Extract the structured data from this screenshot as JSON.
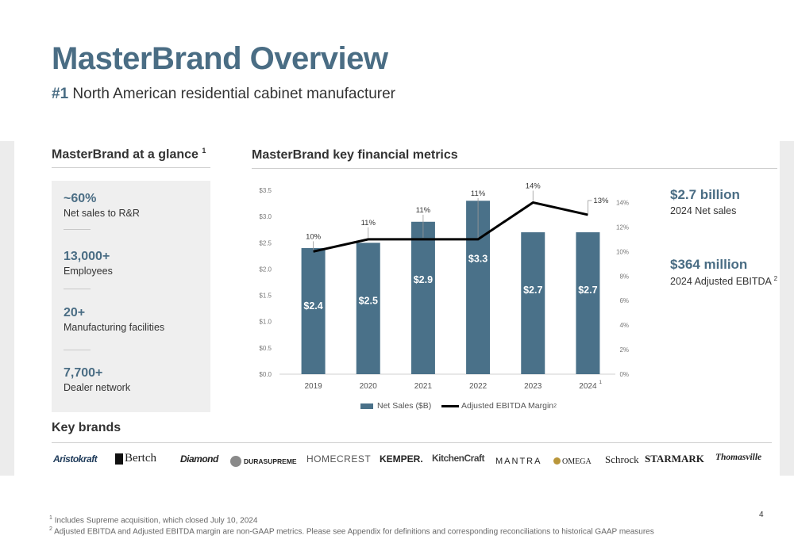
{
  "title": "MasterBrand Overview",
  "subtitle": {
    "hash": "#1",
    "text": "North American residential cabinet manufacturer"
  },
  "glance": {
    "heading": "MasterBrand at a glance",
    "heading_sup": "1",
    "stats": [
      {
        "value": "~60%",
        "label": "Net sales to R&R"
      },
      {
        "value": "13,000+",
        "label": "Employees"
      },
      {
        "value": "20+",
        "label": "Manufacturing facilities"
      },
      {
        "value": "7,700+",
        "label": "Dealer network"
      }
    ]
  },
  "metrics_heading": "MasterBrand key financial metrics",
  "kpis": [
    {
      "value": "$2.7 billion",
      "label": "2024 Net sales",
      "sup": ""
    },
    {
      "value": "$364 million",
      "label": "2024 Adjusted EBITDA",
      "sup": "2"
    }
  ],
  "chart_data": {
    "type": "bar",
    "categories": [
      "2019",
      "2020",
      "2021",
      "2022",
      "2023",
      "2024"
    ],
    "last_category_sup": "1",
    "series": [
      {
        "name": "Net Sales ($B)",
        "type": "bar",
        "axis": "left",
        "color": "#4a7189",
        "values": [
          2.4,
          2.5,
          2.9,
          3.3,
          2.7,
          2.7
        ],
        "labels": [
          "$2.4",
          "$2.5",
          "$2.9",
          "$3.3",
          "$2.7",
          "$2.7"
        ]
      },
      {
        "name": "Adjusted EBITDA Margin",
        "name_sup": "2",
        "type": "line",
        "axis": "right",
        "color": "#000000",
        "values": [
          10,
          11,
          11,
          11,
          14,
          13
        ],
        "labels": [
          "10%",
          "11%",
          "11%",
          "11%",
          "14%",
          "13%"
        ]
      }
    ],
    "y_left": {
      "ticks": [
        "$0.0",
        "$0.5",
        "$1.0",
        "$1.5",
        "$2.0",
        "$2.5",
        "$3.0",
        "$3.5"
      ],
      "ylim": [
        0,
        3.5
      ]
    },
    "y_right": {
      "ticks": [
        "0%",
        "2%",
        "4%",
        "6%",
        "8%",
        "10%",
        "12%",
        "14%"
      ],
      "ylim": [
        0,
        15
      ]
    },
    "grid": false,
    "legend": "bottom"
  },
  "key_brands": {
    "heading": "Key brands",
    "brands": [
      "Aristokraft",
      "Bertch",
      "Diamond",
      "DURASUPREME",
      "HOMECREST",
      "KEMPER.",
      "KitchenCraft",
      "MANTRA",
      "OMEGA",
      "Schrock",
      "STARMARK",
      "Thomasville"
    ]
  },
  "page_number": "4",
  "footnotes": [
    {
      "sup": "1",
      "text": "Includes Supreme acquisition, which closed July 10, 2024"
    },
    {
      "sup": "2",
      "text": "Adjusted EBITDA and Adjusted EBITDA margin are non-GAAP metrics. Please see Appendix for definitions and corresponding reconciliations to historical GAAP measures"
    }
  ]
}
